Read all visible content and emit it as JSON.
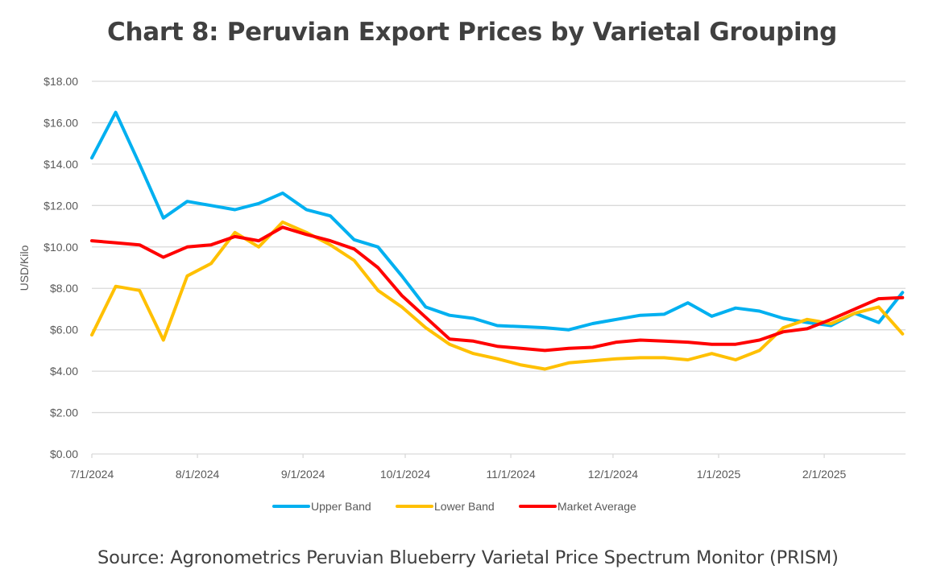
{
  "chart_data": {
    "type": "line",
    "title": "Chart 8: Peruvian Export Prices by Varietal Grouping",
    "xlabel": "",
    "ylabel": "USD/Kilo",
    "ylim": [
      0,
      18
    ],
    "y_ticks": [
      "$0.00",
      "$2.00",
      "$4.00",
      "$6.00",
      "$8.00",
      "$10.00",
      "$12.00",
      "$14.00",
      "$16.00",
      "$18.00"
    ],
    "y_tick_values": [
      0,
      2,
      4,
      6,
      8,
      10,
      12,
      14,
      16,
      18
    ],
    "x_ticks": [
      "7/1/2024",
      "8/1/2024",
      "9/1/2024",
      "10/1/2024",
      "11/1/2024",
      "12/1/2024",
      "1/1/2025",
      "2/1/2025"
    ],
    "x_tick_days": [
      0,
      31,
      62,
      92,
      123,
      153,
      184,
      215
    ],
    "x_range_days": [
      0,
      239
    ],
    "x_start_date": "7/1/2024",
    "x_interval": "weekly",
    "x_days": [
      0,
      7,
      14,
      21,
      28,
      35,
      42,
      49,
      56,
      63,
      70,
      77,
      84,
      91,
      98,
      105,
      112,
      119,
      126,
      133,
      140,
      147,
      154,
      161,
      168,
      175,
      182,
      189,
      196,
      203,
      210,
      217,
      224,
      231,
      238
    ],
    "grid": true,
    "legend_position": "bottom",
    "series": [
      {
        "name": "Upper Band",
        "color": "#00B0F0",
        "values": [
          14.3,
          16.5,
          14.0,
          11.4,
          12.2,
          12.0,
          11.8,
          12.1,
          12.6,
          11.8,
          11.5,
          10.35,
          10.0,
          8.6,
          7.1,
          6.7,
          6.55,
          6.2,
          6.15,
          6.1,
          6.0,
          6.3,
          6.5,
          6.7,
          6.75,
          7.3,
          6.65,
          7.05,
          6.9,
          6.55,
          6.35,
          6.2,
          6.8,
          6.35,
          7.8
        ]
      },
      {
        "name": "Lower Band",
        "color": "#FFC000",
        "values": [
          5.75,
          8.1,
          7.9,
          5.5,
          8.6,
          9.2,
          10.7,
          10.0,
          11.2,
          10.7,
          10.1,
          9.35,
          7.9,
          7.1,
          6.1,
          5.3,
          4.85,
          4.6,
          4.3,
          4.1,
          4.4,
          4.5,
          4.6,
          4.65,
          4.65,
          4.55,
          4.85,
          4.55,
          5.0,
          6.1,
          6.5,
          6.3,
          6.8,
          7.1,
          5.8
        ]
      },
      {
        "name": "Market Average",
        "color": "#FF0000",
        "values": [
          10.3,
          10.2,
          10.1,
          9.5,
          10.0,
          10.1,
          10.5,
          10.3,
          10.95,
          10.6,
          10.3,
          9.9,
          9.0,
          7.65,
          6.6,
          5.55,
          5.45,
          5.2,
          5.1,
          5.0,
          5.1,
          5.15,
          5.4,
          5.5,
          5.45,
          5.4,
          5.3,
          5.3,
          5.5,
          5.9,
          6.05,
          6.5,
          7.0,
          7.5,
          7.55
        ]
      }
    ]
  },
  "source": "Source: Agronometrics Peruvian Blueberry Varietal Price Spectrum Monitor (PRISM)"
}
